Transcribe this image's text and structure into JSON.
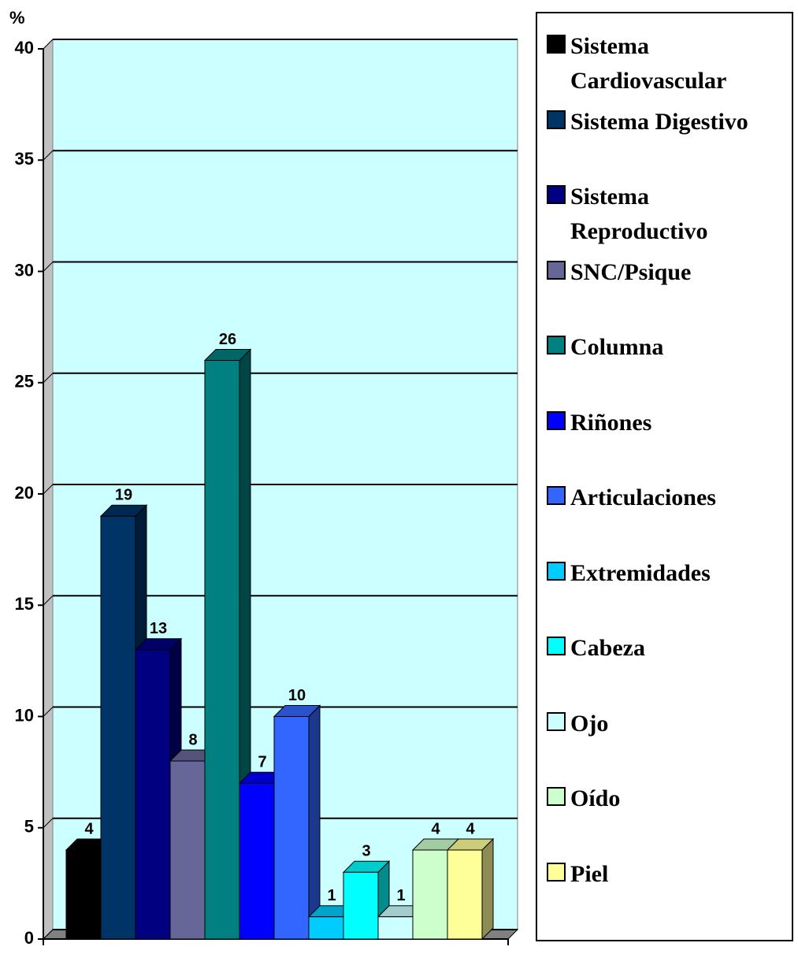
{
  "chart_data": {
    "type": "bar3d",
    "y_label": "%",
    "ylim": [
      0,
      40
    ],
    "yticks": [
      0,
      5,
      10,
      15,
      20,
      25,
      30,
      35,
      40
    ],
    "grid": true,
    "series": [
      {
        "name": "Sistema Cardiovascular",
        "color": "#000000",
        "values": [
          4
        ]
      },
      {
        "name": "Sistema Digestivo",
        "color": "#003366",
        "values": [
          19
        ]
      },
      {
        "name": "Sistema Reproductivo",
        "color": "#000080",
        "values": [
          13
        ]
      },
      {
        "name": "SNC/Psique",
        "color": "#666699",
        "values": [
          8
        ]
      },
      {
        "name": "Columna",
        "color": "#008080",
        "values": [
          26
        ]
      },
      {
        "name": "Riñones",
        "color": "#0000ff",
        "values": [
          7
        ]
      },
      {
        "name": "Articulaciones",
        "color": "#3366ff",
        "values": [
          10
        ]
      },
      {
        "name": "Extremidades",
        "color": "#00ccff",
        "values": [
          1
        ]
      },
      {
        "name": "Cabeza",
        "color": "#00ffff",
        "values": [
          3
        ]
      },
      {
        "name": "Ojo",
        "color": "#ccffff",
        "values": [
          1
        ]
      },
      {
        "name": "Oído",
        "color": "#ccffcc",
        "values": [
          4
        ]
      },
      {
        "name": "Piel",
        "color": "#ffff99",
        "values": [
          4
        ]
      }
    ]
  }
}
